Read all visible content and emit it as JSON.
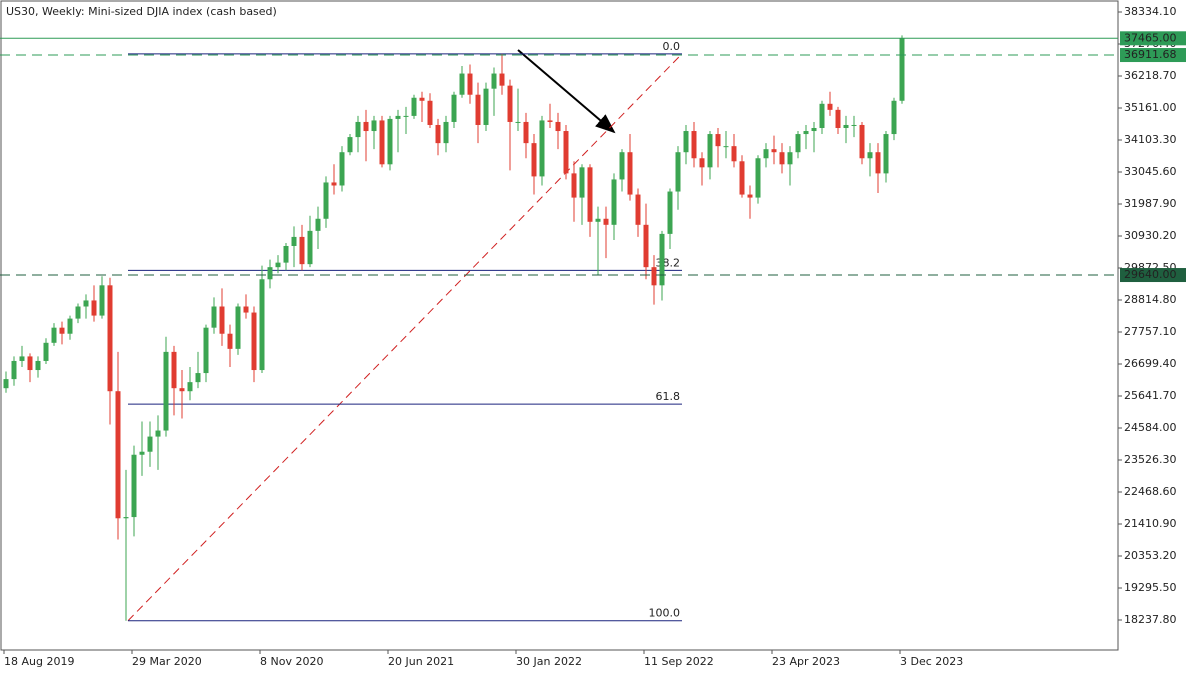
{
  "chart_data": {
    "type": "candlestick",
    "title": "US30, Weekly:  Mini-sized DJIA index (cash based)",
    "xlim": [
      -1,
      278.5
    ],
    "ylim": [
      17246,
      38731
    ],
    "xticks": [
      {
        "value": 0,
        "label": "18 Aug 2019"
      },
      {
        "value": 32,
        "label": "29 Mar 2020"
      },
      {
        "value": 64,
        "label": "8 Nov 2020"
      },
      {
        "value": 96,
        "label": "20 Jun 2021"
      },
      {
        "value": 128,
        "label": "30 Jan 2022"
      },
      {
        "value": 160,
        "label": "11 Sep 2022"
      },
      {
        "value": 192,
        "label": "23 Apr 2023"
      },
      {
        "value": 224,
        "label": "3 Dec 2023"
      }
    ],
    "yticks": [
      {
        "value": 38334.1,
        "label": "38334.10"
      },
      {
        "value": 37276.4,
        "label": "37276.40"
      },
      {
        "value": 36218.7,
        "label": "36218.70"
      },
      {
        "value": 35161.0,
        "label": "35161.00"
      },
      {
        "value": 34103.3,
        "label": "34103.30"
      },
      {
        "value": 33045.6,
        "label": "33045.60"
      },
      {
        "value": 31987.9,
        "label": "31987.90"
      },
      {
        "value": 30930.2,
        "label": "30930.20"
      },
      {
        "value": 29872.5,
        "label": "29872.50"
      },
      {
        "value": 28814.8,
        "label": "28814.80"
      },
      {
        "value": 27757.1,
        "label": "27757.10"
      },
      {
        "value": 26699.4,
        "label": "26699.40"
      },
      {
        "value": 25641.7,
        "label": "25641.70"
      },
      {
        "value": 24584.0,
        "label": "24584.00"
      },
      {
        "value": 23526.3,
        "label": "23526.30"
      },
      {
        "value": 22468.6,
        "label": "22468.60"
      },
      {
        "value": 21410.9,
        "label": "21410.90"
      },
      {
        "value": 20353.2,
        "label": "20353.20"
      },
      {
        "value": 19295.5,
        "label": "19295.50"
      },
      {
        "value": 18237.8,
        "label": "18237.80"
      }
    ],
    "up_color": "#3ca552",
    "down_color": "#e03c31",
    "x": [
      0.5,
      2.5,
      4.5,
      6.5,
      8.5,
      10.5,
      12.5,
      14.5,
      16.5,
      18.5,
      20.5,
      22.5,
      24.5,
      26.5,
      28.5,
      30.5,
      32.5,
      34.5,
      36.5,
      38.5,
      40.5,
      42.5,
      44.5,
      46.5,
      48.5,
      50.5,
      52.5,
      54.5,
      56.5,
      58.5,
      60.5,
      62.5,
      64.5,
      66.5,
      68.5,
      70.5,
      72.5,
      74.5,
      76.5,
      78.5,
      80.5,
      82.5,
      84.5,
      86.5,
      88.5,
      90.5,
      92.5,
      94.5,
      96.5,
      98.5,
      100.5,
      102.5,
      104.5,
      106.5,
      108.5,
      110.5,
      112.5,
      114.5,
      116.5,
      118.5,
      120.5,
      122.5,
      124.5,
      126.5,
      128.5,
      130.5,
      132.5,
      134.5,
      136.5,
      138.5,
      140.5,
      142.5,
      144.5,
      146.5,
      148.5,
      150.5,
      152.5,
      154.5,
      156.5,
      158.5,
      160.5,
      162.5,
      164.5,
      166.5,
      168.5,
      170.5,
      172.5,
      174.5,
      176.5,
      178.5,
      180.5,
      182.5,
      184.5,
      186.5,
      188.5,
      190.5,
      192.5,
      194.5,
      196.5,
      198.5,
      200.5,
      202.5,
      204.5,
      206.5,
      208.5,
      210.5,
      212.5,
      214.5,
      216.5,
      218.5,
      220.5,
      222.5,
      224.5
    ],
    "open": [
      25900,
      26200,
      26800,
      26950,
      26500,
      26800,
      27400,
      27900,
      27700,
      28200,
      28600,
      28800,
      28300,
      29300,
      25800,
      21600,
      21640,
      23700,
      23800,
      24300,
      24500,
      27100,
      25900,
      25800,
      26100,
      26400,
      27900,
      28600,
      27700,
      27200,
      28600,
      28400,
      26500,
      29500,
      29900,
      30050,
      30600,
      30900,
      30000,
      31100,
      31500,
      32700,
      32600,
      33700,
      34200,
      34700,
      34400,
      34750,
      33300,
      34800,
      34900,
      34900,
      35500,
      35400,
      34600,
      34000,
      34700,
      35600,
      36300,
      35600,
      34600,
      35800,
      36300,
      35900,
      34700,
      34700,
      34000,
      32900,
      34750,
      34700,
      34400,
      33000,
      32200,
      33200,
      31400,
      31500,
      31300,
      32800,
      33700,
      32300,
      31300,
      29900,
      29300,
      31000,
      32400,
      33700,
      34400,
      33500,
      33200,
      34300,
      33900,
      33900,
      33400,
      32300,
      32200,
      33500,
      33800,
      33700,
      33300,
      33700,
      34300,
      34400,
      34500,
      35300,
      35100,
      34500,
      34600,
      34600,
      33500,
      33700,
      33000,
      34300,
      35400
    ],
    "high": [
      26450,
      26950,
      27300,
      27050,
      26950,
      27550,
      28050,
      28100,
      28300,
      28700,
      29000,
      29300,
      29600,
      29550,
      27100,
      23200,
      24000,
      24800,
      24800,
      25000,
      27600,
      27300,
      26500,
      26600,
      27100,
      28000,
      28900,
      29200,
      28000,
      28700,
      29000,
      28600,
      29950,
      30150,
      30300,
      30700,
      31250,
      31300,
      31600,
      31900,
      32900,
      33300,
      33900,
      34300,
      34900,
      35100,
      34900,
      34900,
      34900,
      35100,
      35200,
      35600,
      35700,
      35650,
      34800,
      34900,
      35700,
      36550,
      36600,
      36000,
      36000,
      36500,
      36952,
      36100,
      35800,
      35000,
      34300,
      34900,
      35300,
      35000,
      34600,
      33400,
      33300,
      33300,
      31900,
      31900,
      33000,
      33800,
      34300,
      32500,
      32000,
      30300,
      31100,
      32500,
      33900,
      34600,
      34700,
      33700,
      34400,
      34500,
      34400,
      34300,
      33600,
      32600,
      33600,
      34000,
      34250,
      34000,
      33900,
      34400,
      34600,
      34700,
      35400,
      35700,
      35200,
      34900,
      34900,
      34700,
      34000,
      34000,
      34400,
      35500,
      37560
    ],
    "low": [
      25750,
      25980,
      26600,
      26100,
      26250,
      26700,
      27300,
      27350,
      27500,
      28050,
      28200,
      28100,
      28200,
      24700,
      20900,
      18213,
      21000,
      23000,
      23300,
      23200,
      24300,
      25000,
      24900,
      25500,
      25900,
      26100,
      27700,
      27300,
      26600,
      27000,
      28200,
      26100,
      26400,
      29200,
      29700,
      29800,
      29900,
      29800,
      29900,
      30500,
      31200,
      32300,
      32400,
      33600,
      33700,
      33400,
      33800,
      33200,
      33100,
      33700,
      34300,
      34800,
      34700,
      34500,
      33600,
      33700,
      34500,
      35500,
      35300,
      34000,
      34400,
      34900,
      35600,
      33100,
      34400,
      33500,
      32300,
      32600,
      34500,
      33800,
      32800,
      31400,
      31300,
      30900,
      29650,
      30200,
      30800,
      32400,
      32100,
      30900,
      29500,
      28660,
      28800,
      30500,
      31800,
      33300,
      33200,
      32600,
      32800,
      33200,
      33500,
      33200,
      32200,
      31500,
      32000,
      33200,
      33300,
      33000,
      32600,
      33500,
      33800,
      33700,
      34300,
      34900,
      34300,
      34000,
      34200,
      33300,
      32900,
      32350,
      32700,
      34100,
      35300
    ],
    "close": [
      26200,
      26800,
      26950,
      26500,
      26800,
      27400,
      27900,
      27700,
      28200,
      28600,
      28800,
      28300,
      29300,
      25800,
      21600,
      21640,
      23700,
      23800,
      24300,
      24500,
      27100,
      25900,
      25800,
      26100,
      26400,
      27900,
      28600,
      27700,
      27200,
      28600,
      28400,
      26500,
      29500,
      29900,
      30050,
      30600,
      30900,
      30000,
      31100,
      31500,
      32700,
      32600,
      33700,
      34200,
      34700,
      34400,
      34750,
      33300,
      34800,
      34900,
      34900,
      35500,
      35400,
      34600,
      34000,
      34700,
      35600,
      36300,
      35600,
      34600,
      35800,
      36300,
      35900,
      34700,
      34700,
      34000,
      32900,
      34750,
      34700,
      34400,
      33000,
      32200,
      33200,
      31400,
      31500,
      31300,
      32800,
      33700,
      32300,
      31300,
      29900,
      29300,
      31000,
      32400,
      33700,
      34400,
      33500,
      33200,
      34300,
      33900,
      33900,
      33400,
      32300,
      32200,
      33500,
      33800,
      33700,
      33300,
      33700,
      34300,
      34400,
      34500,
      35300,
      35100,
      34500,
      34600,
      34600,
      33500,
      33700,
      33000,
      34300,
      35400,
      37465
    ],
    "price_lines": [
      {
        "value": 37465,
        "label": "37465.00",
        "color": "#2e9b57",
        "style": "solid"
      },
      {
        "value": 36911.68,
        "label": "36911.68",
        "color": "#2e9b57",
        "style": "dashed"
      },
      {
        "value": 29640,
        "label": "29640.00",
        "color": "#1f5f3f",
        "style": "dashed"
      }
    ],
    "fibonacci": {
      "x": [
        31,
        169.5
      ],
      "y": [
        18213,
        36952
      ],
      "color": "#1a237e",
      "trend_color": "#d02020",
      "levels": [
        {
          "value": 0,
          "label": "0.0"
        },
        38.2,
        61.8,
        {
          "value": 100,
          "label": "100.0"
        }
      ]
    }
  }
}
